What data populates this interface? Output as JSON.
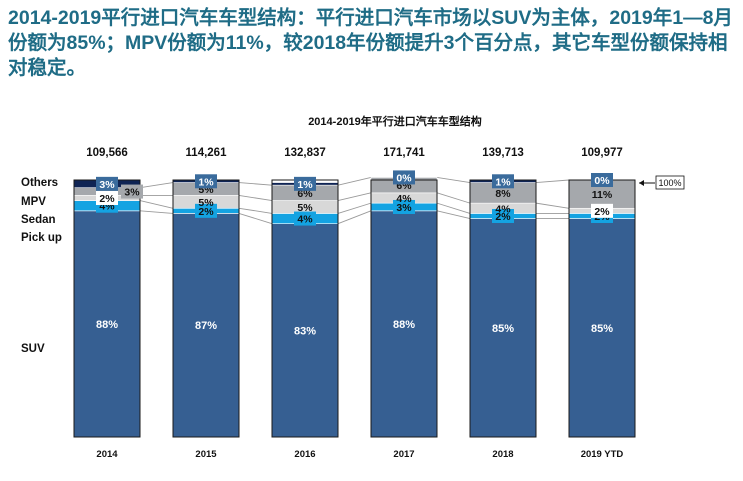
{
  "page": {
    "title": "2014-2019平行进口汽车车型结构：平行进口汽车市场以SUV为主体，2019年1—8月份额为85%；MPV份额为11%，较2018年份额提升3个百分点，其它车型份额保持相对稳定。"
  },
  "colors": {
    "suv": "#365f92",
    "pickup": "#14a3e2",
    "sedan": "#d8d8d8",
    "mpv": "#a5a8ac",
    "others": "#0f2454",
    "label_box": "#3a6b9c",
    "connector": "#9a9a9a",
    "outline": "#1a1a1a"
  },
  "chart_data": {
    "type": "bar",
    "stacked": true,
    "normalized": true,
    "title": "2014-2019年平行进口汽车车型结构",
    "categories": [
      "2014",
      "2015",
      "2016",
      "2017",
      "2018",
      "2019 YTD"
    ],
    "totals": [
      "109,566",
      "114,261",
      "132,837",
      "171,741",
      "139,713",
      "109,977"
    ],
    "series": [
      {
        "name": "SUV",
        "key": "suv",
        "values": [
          88,
          87,
          83,
          88,
          85,
          85
        ]
      },
      {
        "name": "Pick up",
        "key": "pickup",
        "values": [
          4,
          2,
          4,
          3,
          2,
          2
        ]
      },
      {
        "name": "Sedan",
        "key": "sedan",
        "values": [
          2,
          5,
          5,
          4,
          4,
          2
        ]
      },
      {
        "name": "MPV",
        "key": "mpv",
        "values": [
          3,
          5,
          6,
          6,
          8,
          11
        ]
      },
      {
        "name": "Others",
        "key": "others",
        "values": [
          3,
          1,
          1,
          0,
          1,
          0
        ]
      }
    ],
    "value_suffix": "%",
    "legend_position": "left",
    "reference_label": "100%",
    "ylim": [
      0,
      100
    ]
  }
}
